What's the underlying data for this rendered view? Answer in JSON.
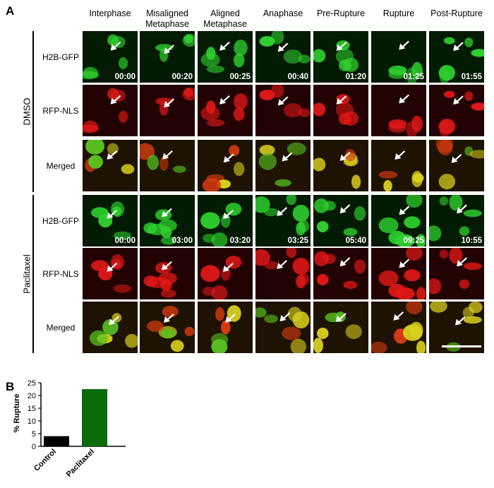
{
  "figure": {
    "panel_a_letter": "A",
    "panel_b_letter": "B",
    "columns": [
      "Interphase",
      "Misaligned Metaphase",
      "Aligned Metaphase",
      "Anaphase",
      "Pre-Rupture",
      "Rupture",
      "Post-Rupture"
    ],
    "groups": [
      {
        "label": "DMSO",
        "rows": [
          "H2B-GFP",
          "RFP-NLS",
          "Merged"
        ],
        "timestamps": [
          "00:00",
          "00:20",
          "00:25",
          "00:40",
          "01:20",
          "01:25",
          "01:55"
        ]
      },
      {
        "label": "Paclitaxel",
        "rows": [
          "H2B-GFP",
          "RFP-NLS",
          "Merged"
        ],
        "timestamps": [
          "00:00",
          "03:00",
          "03:20",
          "03:25",
          "05:40",
          "09:25",
          "10:55"
        ]
      }
    ],
    "channel_colors": {
      "gfp": "#2fd12f",
      "rfp": "#e01818",
      "merged": "#d8d020"
    }
  },
  "chart_data": {
    "type": "bar",
    "categories": [
      "Control",
      "Paclitaxel"
    ],
    "values": [
      4,
      22.5
    ],
    "colors": [
      "#000000",
      "#0b6b0b"
    ],
    "ylabel": "% Rupture",
    "ylim": [
      0,
      25
    ],
    "yticks": [
      0,
      5,
      10,
      15,
      20,
      25
    ],
    "grid": false
  }
}
